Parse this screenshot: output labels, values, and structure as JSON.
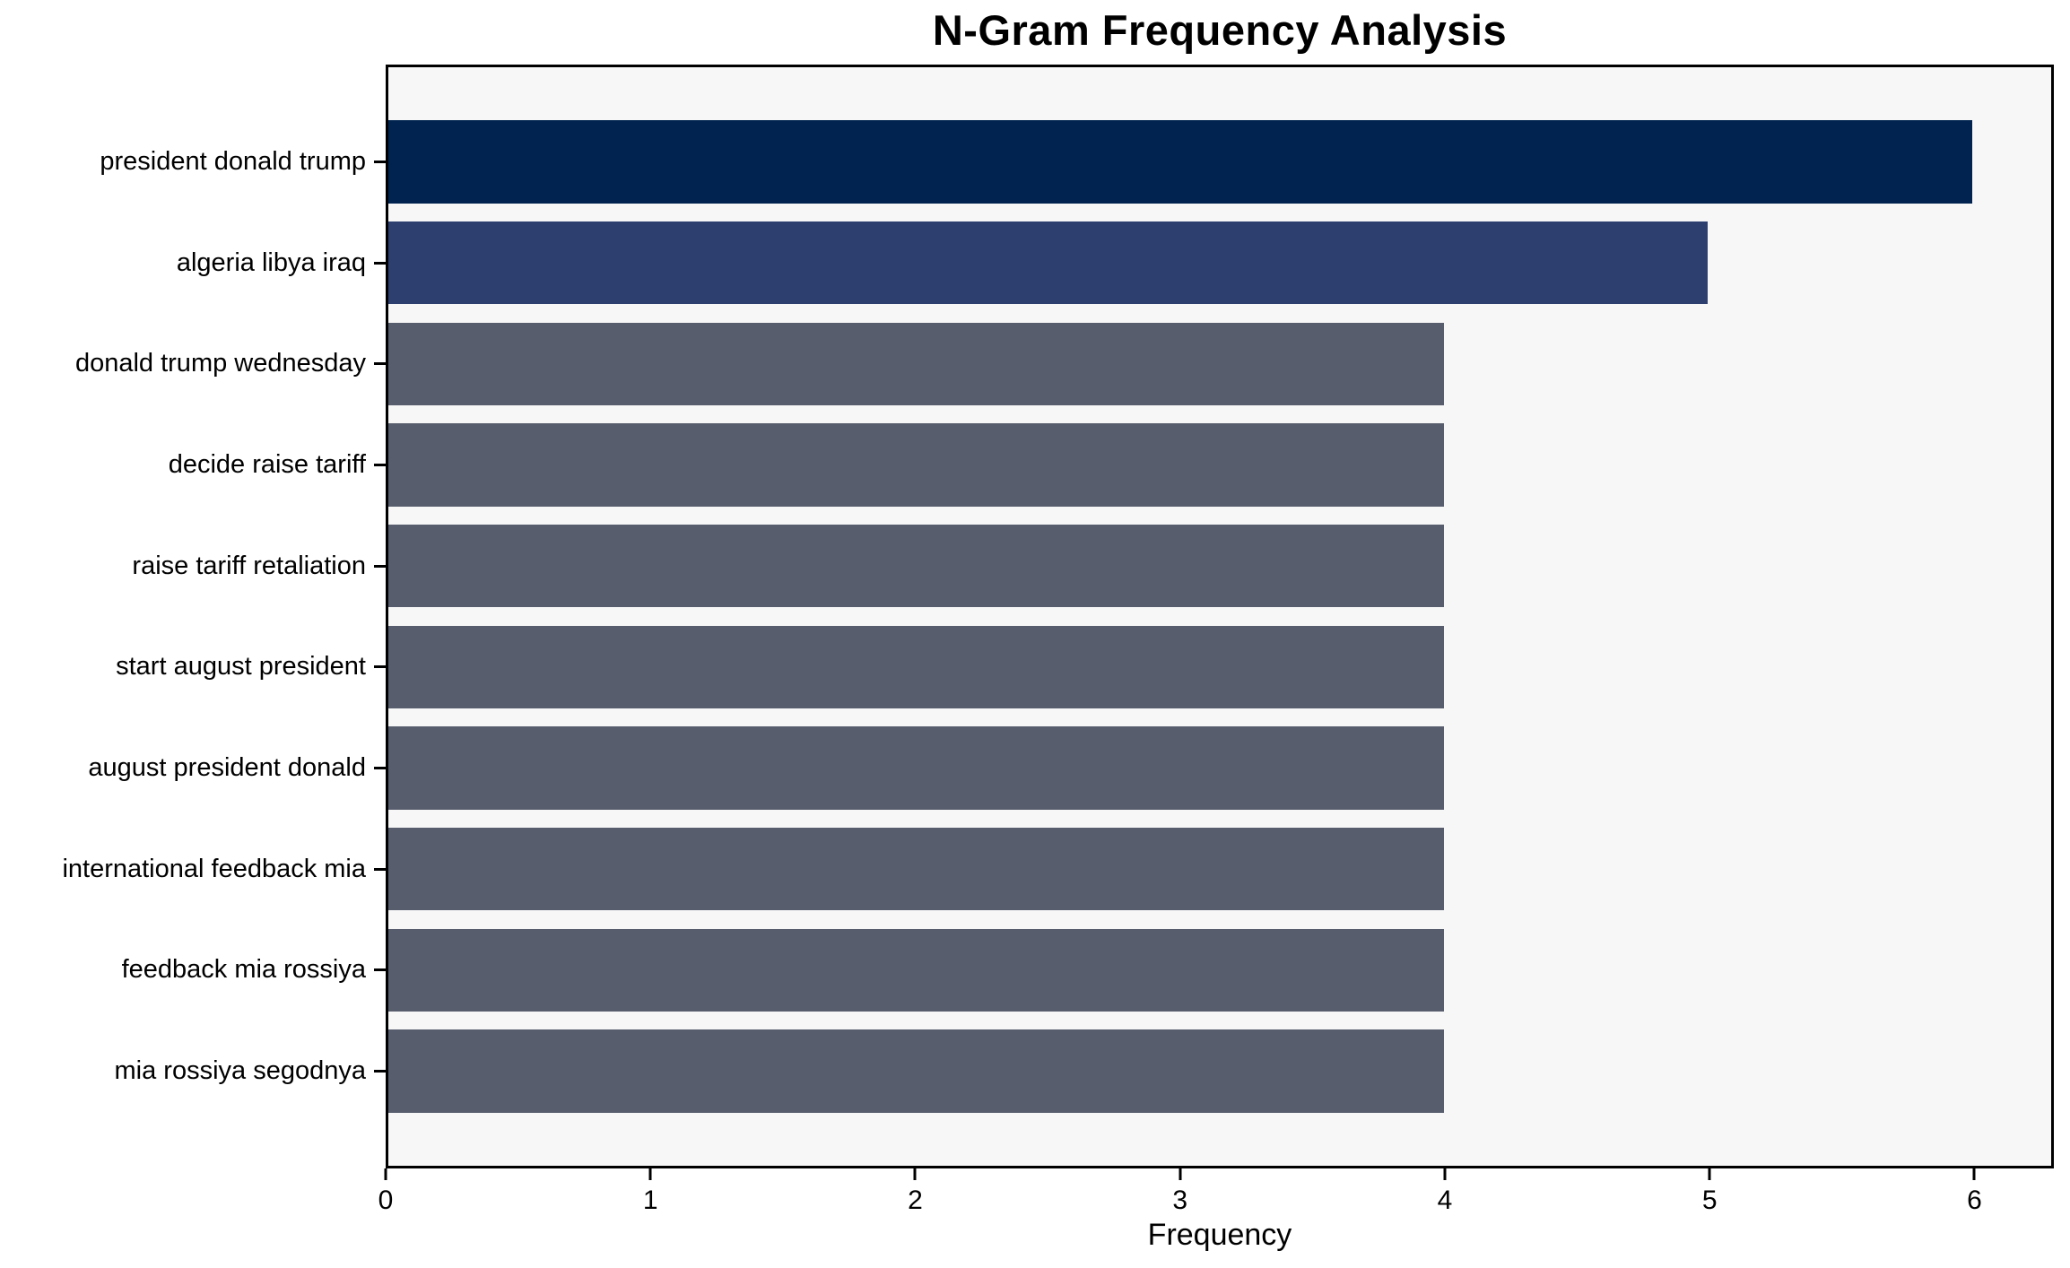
{
  "chart_data": {
    "type": "bar",
    "orientation": "horizontal",
    "title": "N-Gram Frequency Analysis",
    "xlabel": "Frequency",
    "categories": [
      "president donald trump",
      "algeria libya iraq",
      "donald trump wednesday",
      "decide raise tariff",
      "raise tariff retaliation",
      "start august president",
      "august president donald",
      "international feedback mia",
      "feedback mia rossiya",
      "mia rossiya segodnya"
    ],
    "values": [
      6,
      5,
      4,
      4,
      4,
      4,
      4,
      4,
      4,
      4
    ],
    "x_ticks": [
      0,
      1,
      2,
      3,
      4,
      5,
      6
    ],
    "xlim": [
      0,
      6.3
    ],
    "grid": false,
    "legend_position": "none",
    "colors": {
      "bar_colors": [
        "#00234f",
        "#2c3f6f",
        "#575d6c",
        "#575d6c",
        "#575d6c",
        "#575d6c",
        "#575d6c",
        "#575d6c",
        "#575d6c",
        "#575d6c"
      ],
      "plot_background": "#f7f7f8",
      "figure_background": "#ffffff",
      "axis_color": "#000000",
      "text_color": "#000000"
    }
  }
}
